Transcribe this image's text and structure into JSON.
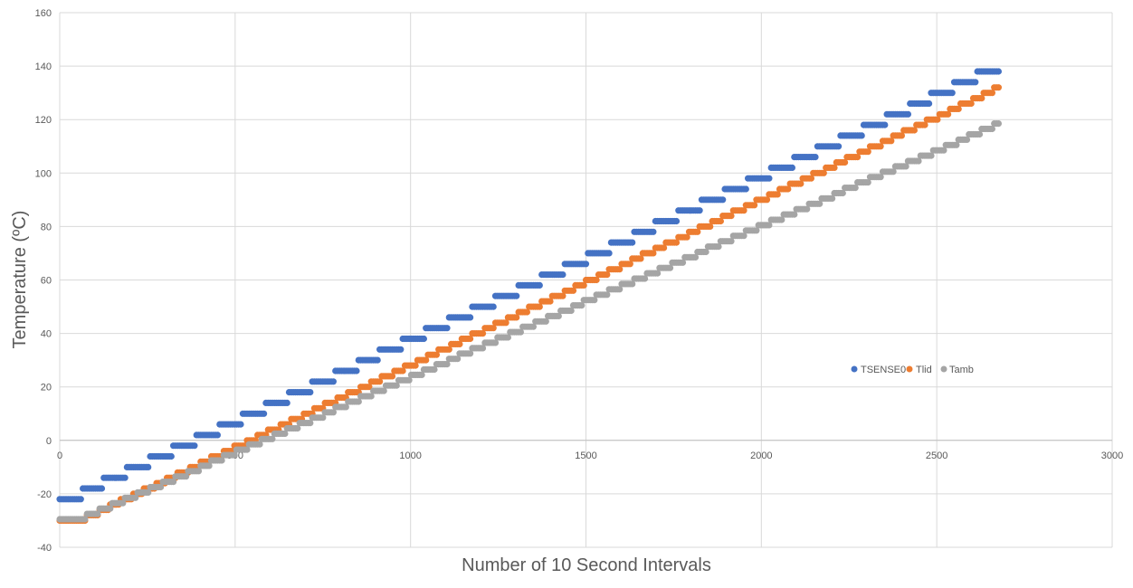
{
  "chart_data": {
    "type": "scatter",
    "title": "",
    "xlabel": "Number of 10 Second Intervals",
    "ylabel": "Temperature (ºC)",
    "xlim": [
      0,
      3000
    ],
    "ylim": [
      -40,
      160
    ],
    "xticks": [
      "0",
      "500",
      "1000",
      "1500",
      "2000",
      "2500",
      "3000"
    ],
    "yticks": [
      "160",
      "140",
      "120",
      "100",
      "80",
      "60",
      "40",
      "20",
      "0",
      "-20",
      "-40"
    ],
    "grid": true,
    "legend_position": "right-center",
    "series": [
      {
        "name": "TSENSE0",
        "color": "#4472C4",
        "x_start": 0,
        "x_end": 2680,
        "y_start": -22,
        "y_end": 138,
        "step": 4,
        "first_step_x": 60,
        "step_period_x": 67
      },
      {
        "name": "Tlid",
        "color": "#ED7D31",
        "x_start": 0,
        "x_end": 2680,
        "y_start": -30,
        "y_end": 132,
        "first_step_x": 60
      },
      {
        "name": "Tamb",
        "color": "#A5A5A5",
        "x_start": 0,
        "x_end": 2680,
        "y_start": -29.5,
        "y_end": 118.5,
        "first_step_x": 60
      }
    ]
  }
}
